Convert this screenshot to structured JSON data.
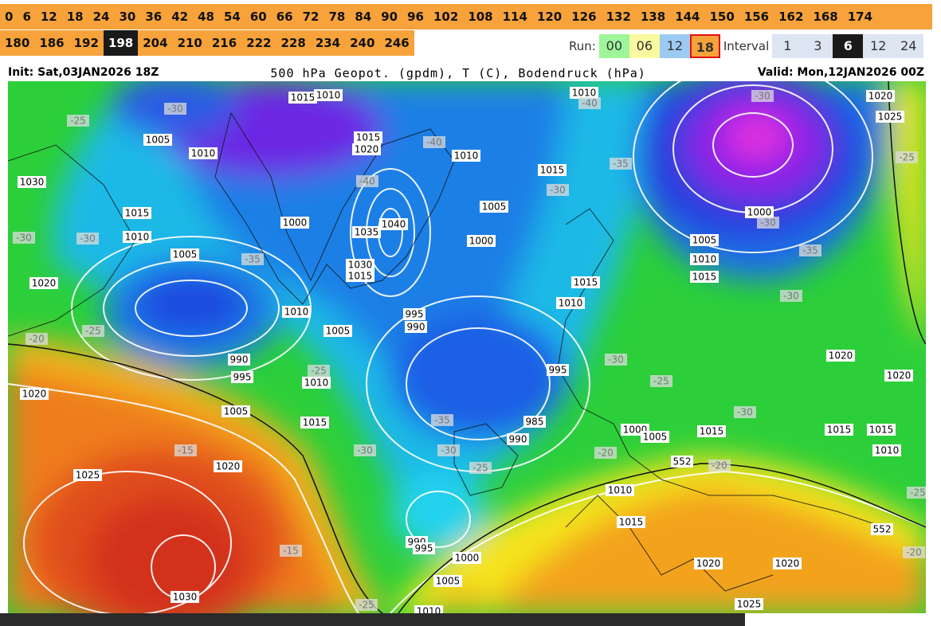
{
  "header": {
    "hours_row1": [
      0,
      6,
      12,
      18,
      24,
      30,
      36,
      42,
      48,
      54,
      60,
      66,
      72,
      78,
      84,
      90,
      96,
      102,
      108,
      114,
      120,
      126,
      132,
      138,
      144,
      150,
      156,
      162,
      168,
      174
    ],
    "hours_row2": [
      180,
      186,
      192,
      198,
      204,
      210,
      216,
      222,
      228,
      234,
      240,
      246
    ],
    "run_label": "Run:",
    "runs": [
      "00",
      "06",
      "12",
      "18"
    ],
    "interval_label": "Interval",
    "intervals": [
      1,
      3,
      6,
      12,
      24
    ]
  },
  "map": {
    "init": "Init: Sat,03JAN2026 18Z",
    "title": "500 hPa Geopot. (gpdm), T (C), Bodendruck (hPa)",
    "valid": "Valid: Mon,12JAN2026 00Z",
    "labels": [
      "1015",
      "1010",
      "1010",
      "1020",
      "1025",
      "-30",
      "-25",
      "1005",
      "1010",
      "1015",
      "1020",
      "-40",
      "1010",
      "1015",
      "-35",
      "-30",
      "-30",
      "-40",
      "-25",
      "1030",
      "1015",
      "-40",
      "1005",
      "1000",
      "1040",
      "1035",
      "1000",
      "-30",
      "-30",
      "-30",
      "1010",
      "1000",
      "1005",
      "-35",
      "1030",
      "1015",
      "1005",
      "1010",
      "-35",
      "1015",
      "1020",
      "1015",
      "1010",
      "1010",
      "995",
      "990",
      "1005",
      "-30",
      "-25",
      "-20",
      "990",
      "995",
      "-25",
      "1010",
      "-30",
      "995",
      "1020",
      "1020",
      "-25",
      "1020",
      "1005",
      "1015",
      "-35",
      "985",
      "-30",
      "990",
      "1000",
      "1005",
      "1015",
      "1015",
      "1015",
      "1010",
      "-15",
      "-30",
      "-30",
      "-20",
      "-25",
      "552",
      "-20",
      "1020",
      "1025",
      "1010",
      "-25",
      "1015",
      "552",
      "990",
      "995",
      "-15",
      "1000",
      "-20",
      "1020",
      "1020",
      "1005",
      "1030",
      "1025",
      "-25",
      "1010"
    ]
  }
}
